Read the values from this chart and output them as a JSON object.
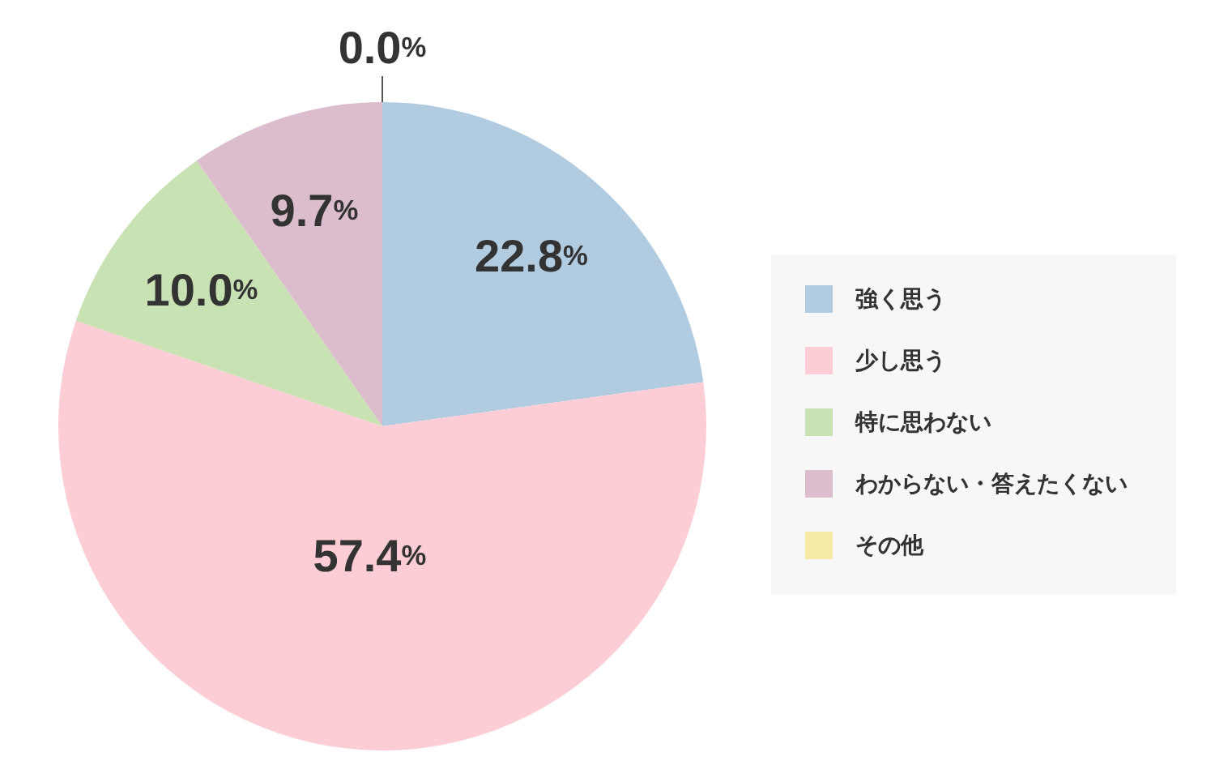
{
  "chart_data": {
    "type": "pie",
    "categories": [
      "強く思う",
      "少し思う",
      "特に思わない",
      "わからない・答えたくない",
      "その他"
    ],
    "values": [
      22.8,
      57.4,
      10.0,
      9.7,
      0.0
    ],
    "colors": [
      "#b1cbe1",
      "#fdcdd5",
      "#c9e2b3",
      "#dbbdcd",
      "#f6e9a8"
    ],
    "value_labels": [
      "22.8%",
      "57.4%",
      "10.0%",
      "9.7%",
      "0.0%"
    ],
    "legend": "right"
  }
}
